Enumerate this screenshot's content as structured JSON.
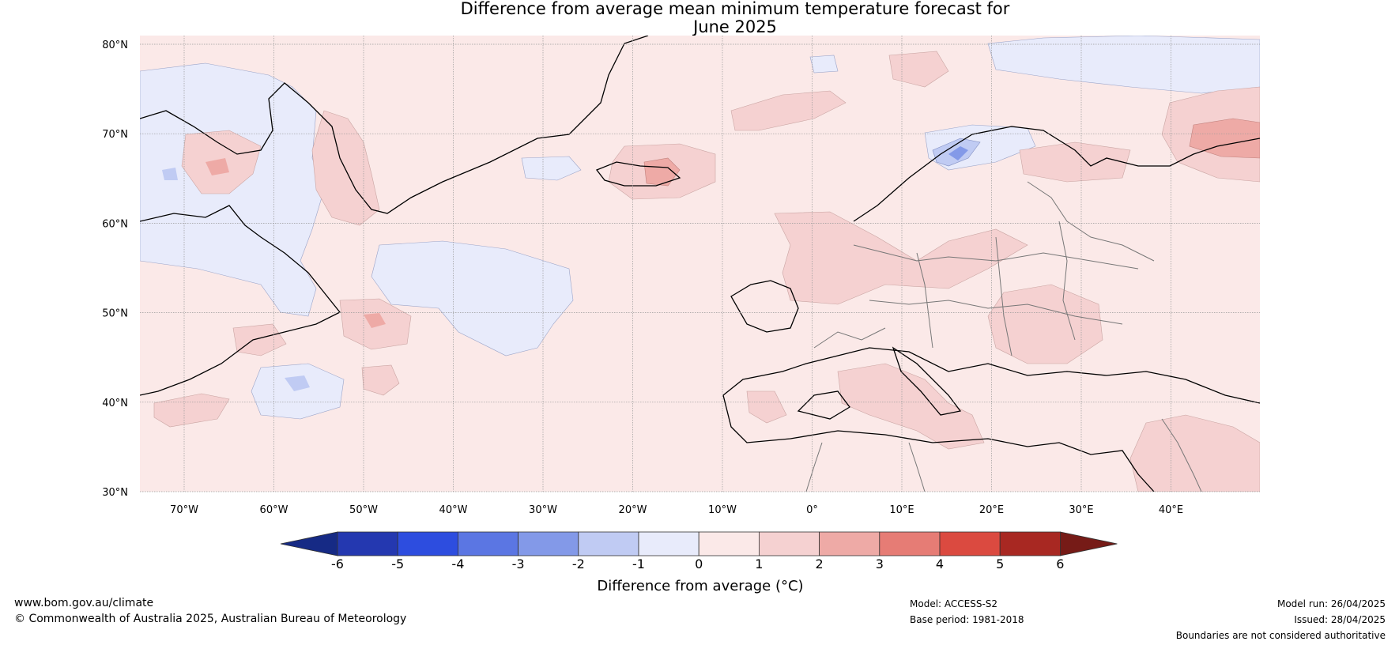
{
  "title": {
    "line1": "Difference from average mean minimum temperature forecast for",
    "line2": "June 2025"
  },
  "map": {
    "lat_labels": [
      "80°N",
      "70°N",
      "60°N",
      "50°N",
      "40°N",
      "30°N"
    ],
    "lon_labels": [
      "70°W",
      "60°W",
      "50°W",
      "40°W",
      "30°W",
      "20°W",
      "10°W",
      "0°",
      "10°E",
      "20°E",
      "30°E",
      "40°E"
    ],
    "background_anomaly_color": "#fbe9e8"
  },
  "colorbar": {
    "ticks": [
      "-6",
      "-5",
      "-4",
      "-3",
      "-2",
      "-1",
      "0",
      "1",
      "2",
      "3",
      "4",
      "5",
      "6"
    ],
    "colors": [
      "#162a85",
      "#2438b0",
      "#2d4ddf",
      "#5b76e3",
      "#8399e8",
      "#c0cbf3",
      "#e8ebfb",
      "#fbe9e8",
      "#f5d1d1",
      "#eeaaa6",
      "#e67c75",
      "#db4a40",
      "#a82822",
      "#761b17"
    ],
    "label": "Difference from average (°C)"
  },
  "footer": {
    "url": "www.bom.gov.au/climate",
    "copyright": "© Commonwealth of Australia 2025, Australian Bureau of Meteorology",
    "model": "Model: ACCESS-S2",
    "base_period": "Base period: 1981-2018",
    "model_run": "Model run: 26/04/2025",
    "issued": "Issued: 28/04/2025",
    "disclaimer": "Boundaries are not considered authoritative"
  }
}
